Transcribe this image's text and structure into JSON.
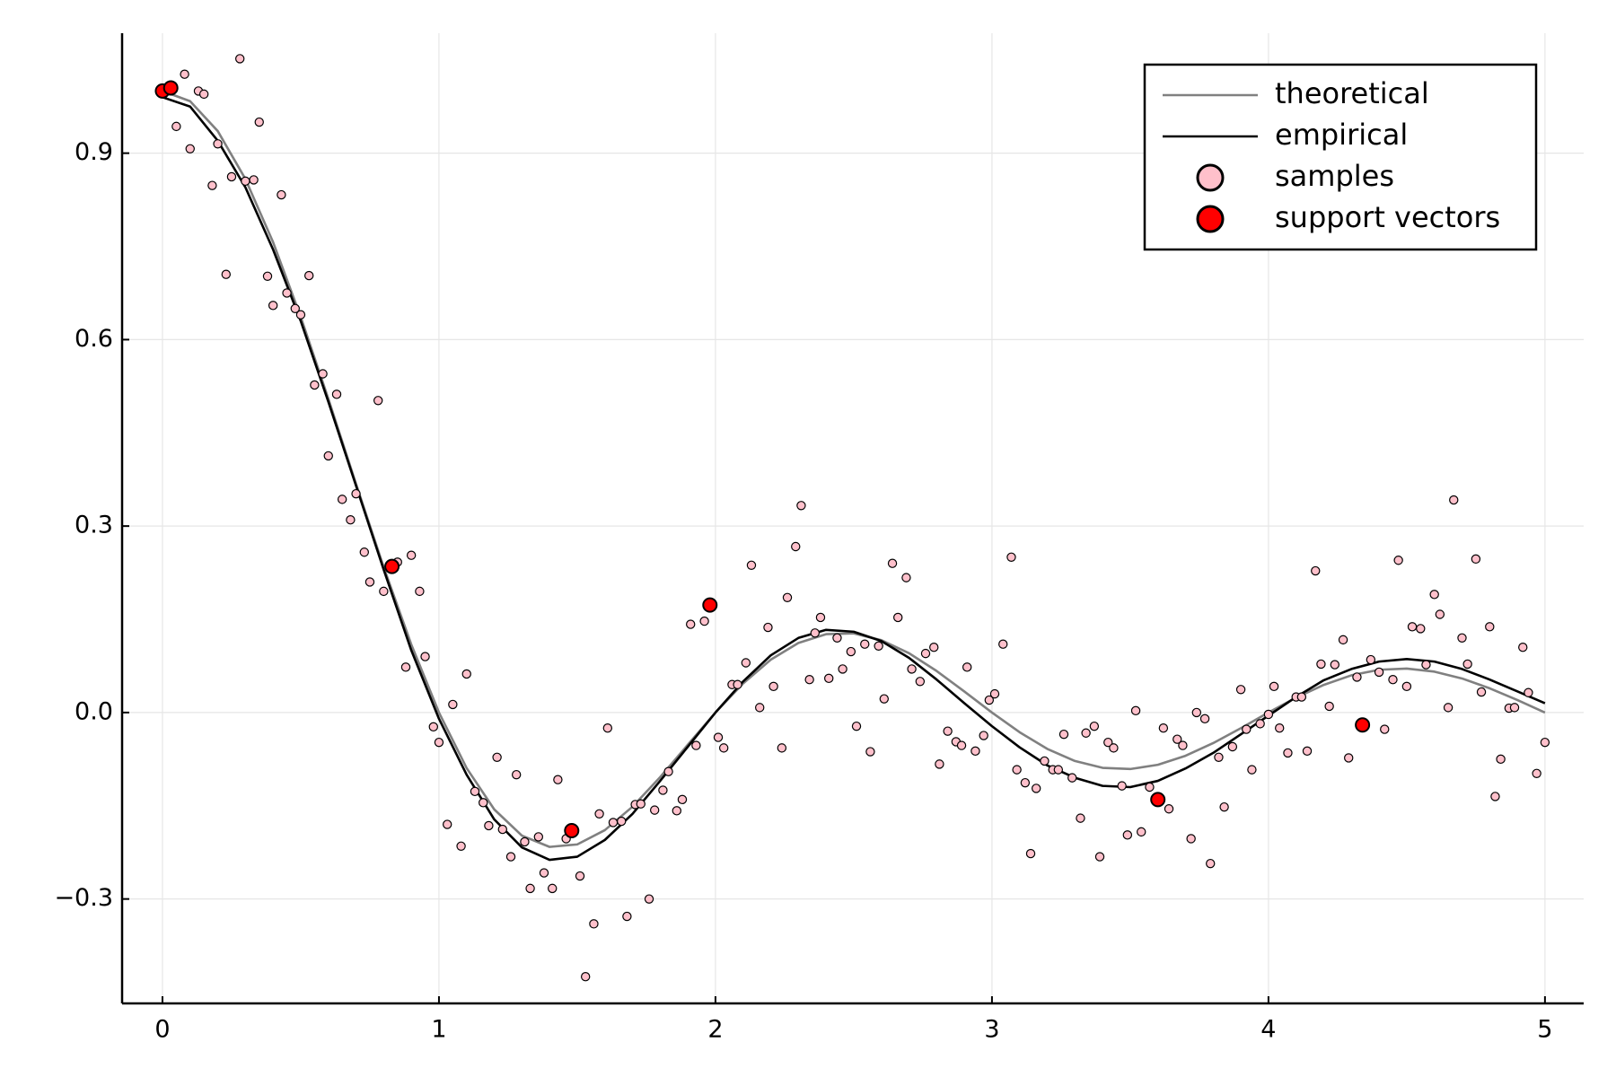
{
  "chart_data": {
    "type": "line",
    "xlim": [
      -0.146,
      5.14
    ],
    "ylim": [
      -0.468,
      1.093
    ],
    "xticks": [
      0,
      1,
      2,
      3,
      4,
      5
    ],
    "yticks": [
      {
        "value": -0.3,
        "label": "−0.3"
      },
      {
        "value": 0,
        "label": "0.0"
      },
      0.3,
      0.6,
      0.9
    ],
    "grid": true,
    "legend": "top-right",
    "series": [
      {
        "name": "theoretical",
        "type": "line",
        "color": "#808080",
        "x": [
          0,
          0.1,
          0.2,
          0.3,
          0.4,
          0.5,
          0.6,
          0.7,
          0.8,
          0.9,
          1,
          1.1,
          1.2,
          1.3,
          1.4,
          1.5,
          1.6,
          1.7,
          1.8,
          1.9,
          2,
          2.1,
          2.2,
          2.3,
          2.4,
          2.5,
          2.6,
          2.7,
          2.8,
          2.9,
          3,
          3.1,
          3.2,
          3.3,
          3.4,
          3.5,
          3.6,
          3.7,
          3.8,
          3.9,
          4,
          4.1,
          4.2,
          4.3,
          4.4,
          4.5,
          4.6,
          4.7,
          4.8,
          4.9,
          5
        ],
        "values": [
          1,
          0.9836,
          0.9355,
          0.8584,
          0.7568,
          0.6366,
          0.5046,
          0.3679,
          0.2339,
          0.1093,
          0,
          -0.0894,
          -0.1559,
          -0.1981,
          -0.2162,
          -0.2122,
          -0.1892,
          -0.1515,
          -0.1039,
          -0.0518,
          0,
          0.0468,
          0.085,
          0.112,
          0.1261,
          0.1273,
          0.1164,
          0.0954,
          0.0668,
          0.0339,
          0,
          -0.0317,
          -0.0585,
          -0.078,
          -0.089,
          -0.0909,
          -0.0841,
          -0.0696,
          -0.0492,
          -0.0252,
          0,
          0.024,
          0.0445,
          0.0599,
          0.0688,
          0.0707,
          0.0658,
          0.0548,
          0.039,
          0.0201,
          0
        ]
      },
      {
        "name": "empirical",
        "type": "line",
        "color": "#000000",
        "x": [
          0,
          0.1,
          0.2,
          0.3,
          0.4,
          0.5,
          0.6,
          0.7,
          0.8,
          0.9,
          1,
          1.1,
          1.2,
          1.3,
          1.4,
          1.5,
          1.6,
          1.7,
          1.8,
          1.9,
          2,
          2.1,
          2.2,
          2.3,
          2.4,
          2.5,
          2.6,
          2.7,
          2.8,
          2.9,
          3,
          3.1,
          3.2,
          3.3,
          3.4,
          3.5,
          3.6,
          3.7,
          3.8,
          3.9,
          4,
          4.1,
          4.2,
          4.3,
          4.4,
          4.5,
          4.6,
          4.7,
          4.8,
          4.9,
          5
        ],
        "values": [
          0.99,
          0.975,
          0.92,
          0.845,
          0.745,
          0.63,
          0.5,
          0.365,
          0.23,
          0.1,
          -0.01,
          -0.1,
          -0.172,
          -0.217,
          -0.237,
          -0.232,
          -0.205,
          -0.163,
          -0.11,
          -0.055,
          0,
          0.05,
          0.092,
          0.12,
          0.133,
          0.13,
          0.115,
          0.088,
          0.053,
          0.015,
          -0.022,
          -0.056,
          -0.085,
          -0.105,
          -0.118,
          -0.12,
          -0.11,
          -0.09,
          -0.065,
          -0.035,
          -0.005,
          0.025,
          0.052,
          0.07,
          0.082,
          0.086,
          0.082,
          0.07,
          0.053,
          0.034,
          0.015
        ]
      },
      {
        "name": "samples",
        "type": "scatter",
        "color": "#ffc0cb",
        "x": [
          0.05,
          0.08,
          0.1,
          0.13,
          0.15,
          0.18,
          0.2,
          0.23,
          0.25,
          0.28,
          0.3,
          0.33,
          0.35,
          0.38,
          0.4,
          0.43,
          0.45,
          0.48,
          0.5,
          0.53,
          0.55,
          0.58,
          0.6,
          0.63,
          0.65,
          0.68,
          0.7,
          0.73,
          0.75,
          0.78,
          0.8,
          0.85,
          0.88,
          0.9,
          0.93,
          0.95,
          0.98,
          1,
          1.03,
          1.05,
          1.08,
          1.1,
          1.13,
          1.16,
          1.18,
          1.21,
          1.23,
          1.26,
          1.28,
          1.31,
          1.33,
          1.36,
          1.38,
          1.41,
          1.43,
          1.46,
          1.51,
          1.53,
          1.56,
          1.58,
          1.61,
          1.63,
          1.66,
          1.68,
          1.71,
          1.73,
          1.76,
          1.78,
          1.81,
          1.83,
          1.86,
          1.88,
          1.91,
          1.93,
          1.96,
          2.01,
          2.03,
          2.06,
          2.08,
          2.11,
          2.13,
          2.16,
          2.19,
          2.21,
          2.24,
          2.26,
          2.29,
          2.31,
          2.34,
          2.36,
          2.38,
          2.41,
          2.44,
          2.46,
          2.49,
          2.51,
          2.54,
          2.56,
          2.59,
          2.61,
          2.64,
          2.66,
          2.69,
          2.71,
          2.74,
          2.76,
          2.79,
          2.81,
          2.84,
          2.87,
          2.89,
          2.91,
          2.94,
          2.97,
          2.99,
          3.01,
          3.04,
          3.07,
          3.09,
          3.12,
          3.14,
          3.16,
          3.19,
          3.22,
          3.24,
          3.26,
          3.29,
          3.32,
          3.34,
          3.37,
          3.39,
          3.42,
          3.44,
          3.47,
          3.49,
          3.52,
          3.54,
          3.57,
          3.62,
          3.64,
          3.67,
          3.69,
          3.72,
          3.74,
          3.77,
          3.79,
          3.82,
          3.84,
          3.87,
          3.9,
          3.92,
          3.94,
          3.97,
          4,
          4.02,
          4.04,
          4.07,
          4.1,
          4.12,
          4.14,
          4.17,
          4.19,
          4.22,
          4.24,
          4.27,
          4.29,
          4.32,
          4.37,
          4.4,
          4.42,
          4.45,
          4.47,
          4.5,
          4.52,
          4.55,
          4.57,
          4.6,
          4.62,
          4.65,
          4.67,
          4.7,
          4.72,
          4.75,
          4.77,
          4.8,
          4.82,
          4.84,
          4.87,
          4.89,
          4.92,
          4.94,
          4.97,
          5
        ],
        "values": [
          0.943,
          1.027,
          0.907,
          1,
          0.995,
          0.848,
          0.915,
          0.705,
          0.862,
          1.052,
          0.855,
          0.857,
          0.95,
          0.702,
          0.655,
          0.833,
          0.675,
          0.65,
          0.64,
          0.703,
          0.527,
          0.545,
          0.413,
          0.512,
          0.343,
          0.31,
          0.352,
          0.258,
          0.21,
          0.502,
          0.195,
          0.242,
          0.073,
          0.253,
          0.195,
          0.09,
          -0.023,
          -0.048,
          -0.18,
          0.013,
          -0.215,
          0.062,
          -0.127,
          -0.145,
          -0.182,
          -0.072,
          -0.188,
          -0.232,
          -0.1,
          -0.208,
          -0.283,
          -0.2,
          -0.258,
          -0.283,
          -0.108,
          -0.203,
          -0.263,
          -0.425,
          -0.34,
          -0.163,
          -0.025,
          -0.177,
          -0.175,
          -0.328,
          -0.148,
          -0.147,
          -0.3,
          -0.157,
          -0.125,
          -0.095,
          -0.158,
          -0.14,
          0.142,
          -0.053,
          0.147,
          -0.04,
          -0.057,
          0.045,
          0.045,
          0.08,
          0.237,
          0.008,
          0.137,
          0.042,
          -0.057,
          0.185,
          0.267,
          0.333,
          0.053,
          0.128,
          0.153,
          0.055,
          0.12,
          0.07,
          0.098,
          -0.022,
          0.11,
          -0.063,
          0.107,
          0.022,
          0.24,
          0.153,
          0.217,
          0.07,
          0.05,
          0.095,
          0.105,
          -0.083,
          -0.03,
          -0.047,
          -0.053,
          0.073,
          -0.062,
          -0.037,
          0.02,
          0.03,
          0.11,
          0.25,
          -0.092,
          -0.113,
          -0.227,
          -0.122,
          -0.078,
          -0.092,
          -0.092,
          -0.035,
          -0.105,
          -0.17,
          -0.033,
          -0.022,
          -0.232,
          -0.048,
          -0.057,
          -0.118,
          -0.197,
          0.003,
          -0.192,
          -0.12,
          -0.025,
          -0.155,
          -0.043,
          -0.053,
          -0.203,
          0,
          -0.01,
          -0.243,
          -0.072,
          -0.152,
          -0.055,
          0.037,
          -0.027,
          -0.092,
          -0.018,
          -0.003,
          0.042,
          -0.025,
          -0.065,
          0.025,
          0.025,
          -0.062,
          0.228,
          0.078,
          0.01,
          0.077,
          0.117,
          -0.073,
          0.057,
          0.085,
          0.065,
          -0.027,
          0.053,
          0.245,
          0.042,
          0.138,
          0.135,
          0.077,
          0.19,
          0.158,
          0.008,
          0.342,
          0.12,
          0.078,
          0.247,
          0.033,
          0.138,
          -0.135,
          -0.075,
          0.007,
          0.008,
          0.105,
          0.032,
          -0.098,
          -0.048
        ]
      },
      {
        "name": "support vectors",
        "type": "scatter",
        "color": "#ff0000",
        "x": [
          0,
          0.03,
          0.83,
          1.48,
          1.98,
          3.6,
          4.34
        ],
        "values": [
          1,
          1.005,
          0.235,
          -0.19,
          0.173,
          -0.14,
          -0.02
        ]
      }
    ]
  }
}
